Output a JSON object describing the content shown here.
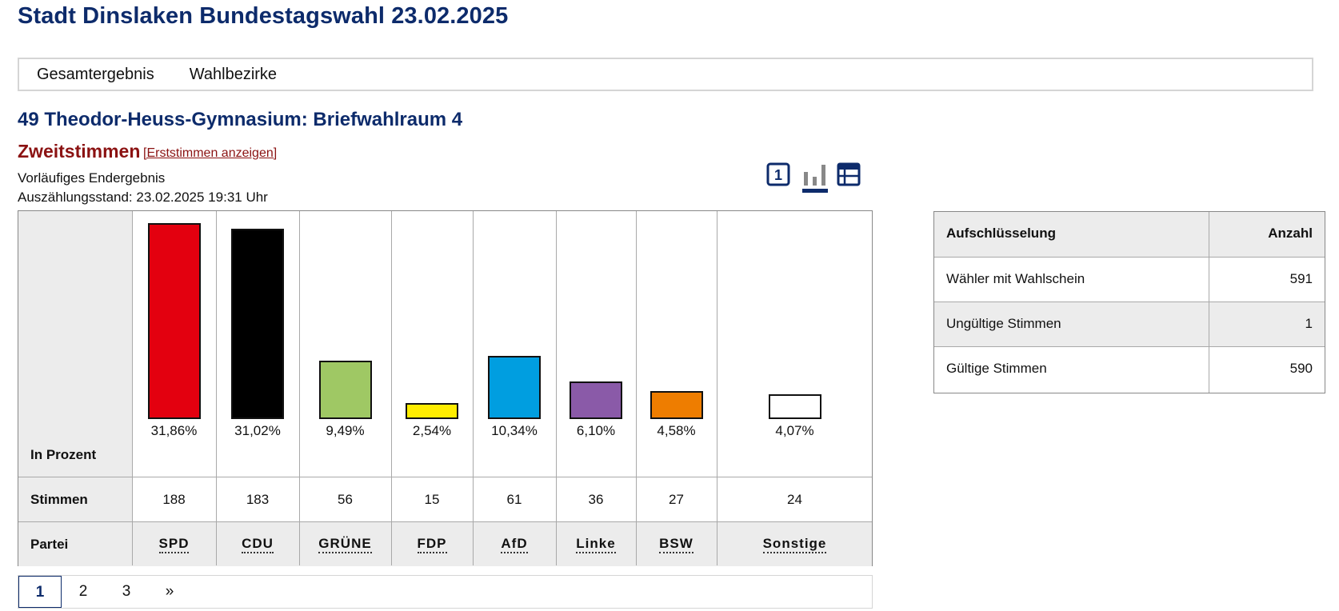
{
  "page": {
    "title": "Stadt Dinslaken Bundestagswahl 23.02.2025",
    "nav": [
      "Gesamtergebnis",
      "Wahlbezirke"
    ],
    "section_title": "49 Theodor-Heuss-Gymnasium: Briefwahlraum 4",
    "vote_type": "Zweitstimmen",
    "vote_toggle_link": "[Erststimmen anzeigen]",
    "status_line1": "Vorläufiges Endergebnis",
    "status_line2": "Auszählungsstand: 23.02.2025 19:31 Uhr"
  },
  "view_icons": {
    "number_label": "1",
    "icons": [
      "number-view-icon",
      "bar-chart-icon",
      "table-view-icon"
    ],
    "active": "bar-chart-icon",
    "accent": "#0d2b6b"
  },
  "results": {
    "row_labels": {
      "percent": "In Prozent",
      "votes": "Stimmen",
      "party": "Partei"
    },
    "parties": [
      {
        "name": "SPD",
        "percent": "31,86%",
        "votes": "188",
        "color": "#e3000f"
      },
      {
        "name": "CDU",
        "percent": "31,02%",
        "votes": "183",
        "color": "#000000"
      },
      {
        "name": "GRÜNE",
        "percent": "9,49%",
        "votes": "56",
        "color": "#9fc864"
      },
      {
        "name": "FDP",
        "percent": "2,54%",
        "votes": "15",
        "color": "#ffed00"
      },
      {
        "name": "AfD",
        "percent": "10,34%",
        "votes": "61",
        "color": "#009ee0"
      },
      {
        "name": "Linke",
        "percent": "6,10%",
        "votes": "36",
        "color": "#8a5aa8"
      },
      {
        "name": "BSW",
        "percent": "4,58%",
        "votes": "27",
        "color": "#ee7d00"
      },
      {
        "name": "Sonstige",
        "percent": "4,07%",
        "votes": "24",
        "color": "#ffffff"
      }
    ]
  },
  "chart_data": {
    "type": "bar",
    "categories": [
      "SPD",
      "CDU",
      "GRÜNE",
      "FDP",
      "AfD",
      "Linke",
      "BSW",
      "Sonstige"
    ],
    "values": [
      31.86,
      31.02,
      9.49,
      2.54,
      10.34,
      6.1,
      4.58,
      4.07
    ],
    "ylabel": "In Prozent"
  },
  "pagination": {
    "pages": [
      "1",
      "2",
      "3"
    ],
    "next": "»",
    "current": "1"
  },
  "breakdown": {
    "headers": [
      "Aufschlüsselung",
      "Anzahl"
    ],
    "rows": [
      {
        "label": "Wähler mit Wahlschein",
        "value": "591"
      },
      {
        "label": "Ungültige Stimmen",
        "value": "1"
      },
      {
        "label": "Gültige Stimmen",
        "value": "590"
      }
    ]
  }
}
